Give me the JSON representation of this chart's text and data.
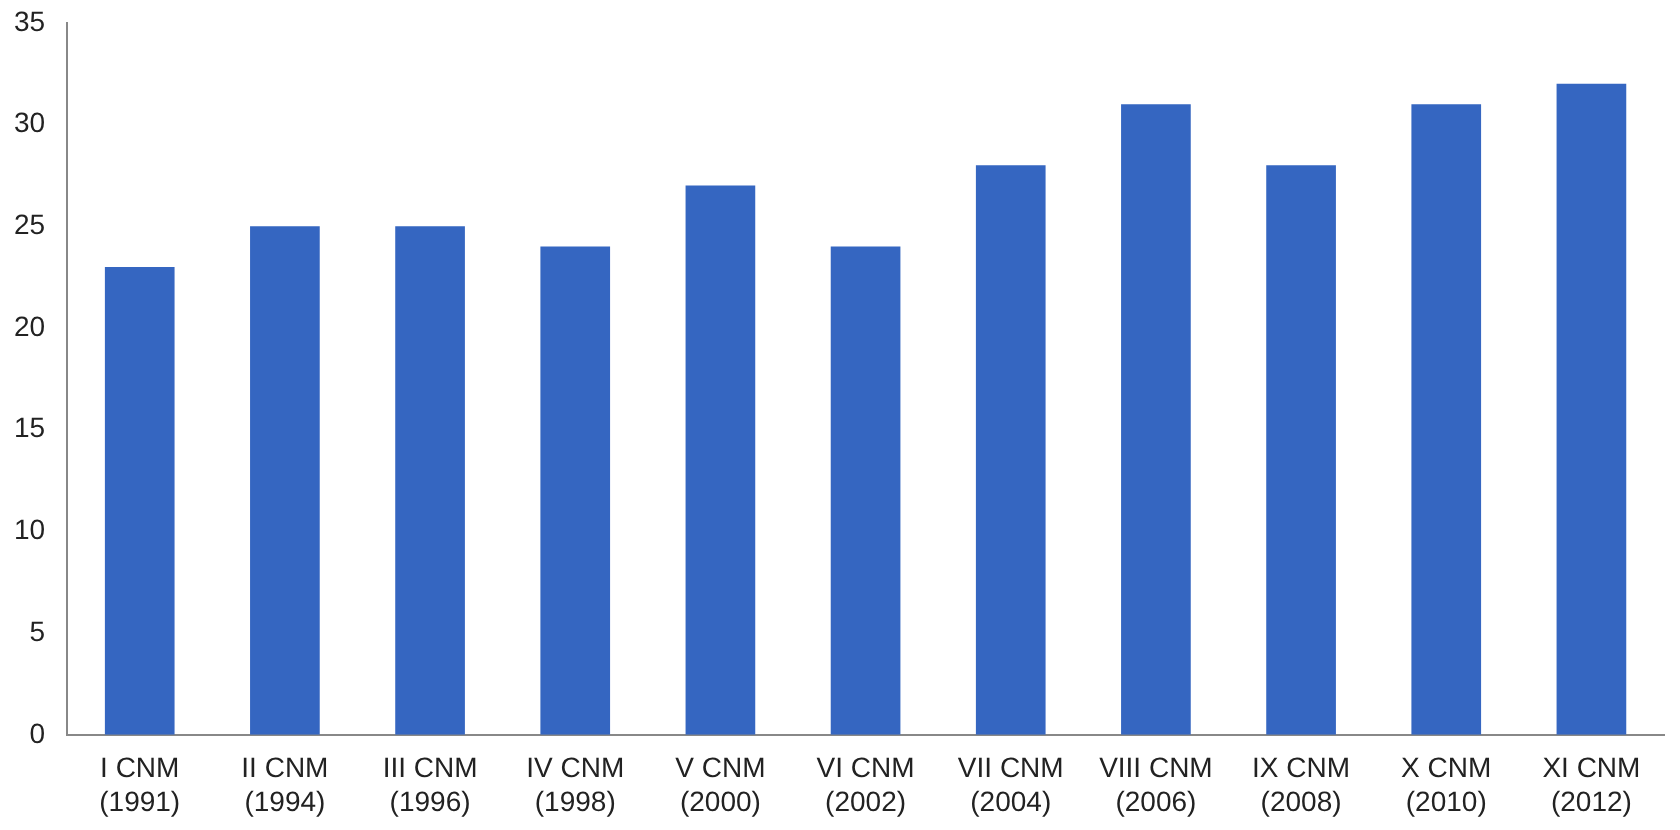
{
  "chart_data": {
    "type": "bar",
    "categories": [
      "I CNM (1991)",
      "II CNM (1994)",
      "III CNM (1996)",
      "IV CNM (1998)",
      "V CNM (2000)",
      "VI CNM (2002)",
      "VII CNM (2004)",
      "VIII CNM (2006)",
      "IX CNM (2008)",
      "X CNM (2010)",
      "XI CNM (2012)"
    ],
    "values": [
      23,
      25,
      25,
      24,
      27,
      24,
      28,
      31,
      28,
      31,
      32
    ],
    "color": "#3566c1",
    "ylim": [
      0,
      35
    ],
    "yticks": [
      0,
      5,
      10,
      15,
      20,
      25,
      30,
      35
    ],
    "grid": false,
    "legend": false
  }
}
